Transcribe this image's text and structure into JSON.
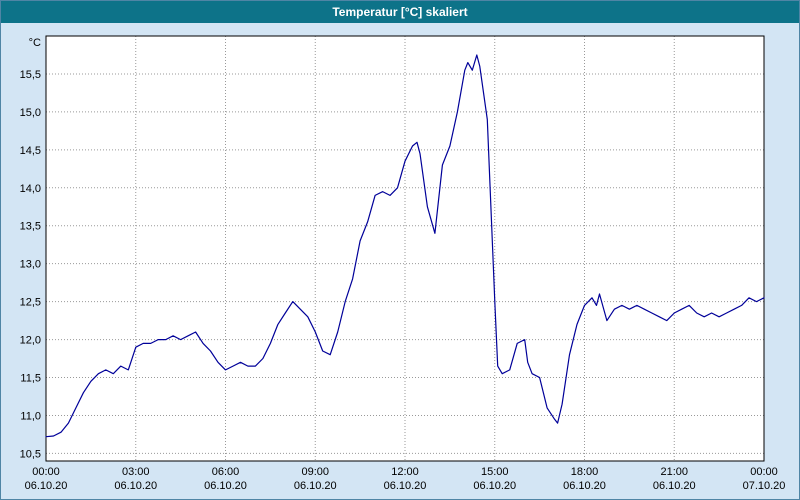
{
  "window": {
    "title": "Temperatur [°C] skaliert"
  },
  "colors": {
    "titlebar": "#0d7389",
    "window_background": "#d3e5f4",
    "plot_background": "#ffffff",
    "plot_border": "#000000",
    "grid": "#999999",
    "line": "#000099",
    "text": "#000000"
  },
  "chart_data": {
    "type": "line",
    "title": "Temperatur [°C] skaliert",
    "ylabel": "°C",
    "xlabel": "",
    "grid": true,
    "legend": false,
    "ylim": [
      10.4,
      16.0
    ],
    "x_range_hours": [
      0,
      24
    ],
    "y_ticks": [
      {
        "value": 10.5,
        "label": "10,5"
      },
      {
        "value": 11.0,
        "label": "11,0"
      },
      {
        "value": 11.5,
        "label": "11,5"
      },
      {
        "value": 12.0,
        "label": "12,0"
      },
      {
        "value": 12.5,
        "label": "12,5"
      },
      {
        "value": 13.0,
        "label": "13,0"
      },
      {
        "value": 13.5,
        "label": "13,5"
      },
      {
        "value": 14.0,
        "label": "14,0"
      },
      {
        "value": 14.5,
        "label": "14,5"
      },
      {
        "value": 15.0,
        "label": "15,0"
      },
      {
        "value": 15.5,
        "label": "15,5"
      }
    ],
    "x_ticks": [
      {
        "hour": 0,
        "time": "00:00",
        "date": "06.10.20"
      },
      {
        "hour": 3,
        "time": "03:00",
        "date": "06.10.20"
      },
      {
        "hour": 6,
        "time": "06:00",
        "date": "06.10.20"
      },
      {
        "hour": 9,
        "time": "09:00",
        "date": "06.10.20"
      },
      {
        "hour": 12,
        "time": "12:00",
        "date": "06.10.20"
      },
      {
        "hour": 15,
        "time": "15:00",
        "date": "06.10.20"
      },
      {
        "hour": 18,
        "time": "18:00",
        "date": "06.10.20"
      },
      {
        "hour": 21,
        "time": "21:00",
        "date": "06.10.20"
      },
      {
        "hour": 24,
        "time": "00:00",
        "date": "07.10.20"
      }
    ],
    "series": [
      {
        "name": "Temperatur",
        "x_hours": [
          0,
          0.25,
          0.5,
          0.75,
          1,
          1.25,
          1.5,
          1.75,
          2,
          2.25,
          2.5,
          2.75,
          3,
          3.25,
          3.5,
          3.75,
          4,
          4.25,
          4.5,
          4.75,
          5,
          5.25,
          5.5,
          5.75,
          6,
          6.25,
          6.5,
          6.75,
          7,
          7.25,
          7.5,
          7.75,
          8,
          8.25,
          8.5,
          8.75,
          9,
          9.25,
          9.5,
          9.75,
          10,
          10.25,
          10.5,
          10.75,
          11,
          11.25,
          11.5,
          11.75,
          12,
          12.25,
          12.4,
          12.5,
          12.75,
          13,
          13.25,
          13.5,
          13.75,
          14,
          14.1,
          14.25,
          14.4,
          14.5,
          14.75,
          15,
          15.1,
          15.25,
          15.5,
          15.75,
          16,
          16.1,
          16.25,
          16.5,
          16.75,
          17,
          17.1,
          17.25,
          17.5,
          17.75,
          18,
          18.25,
          18.4,
          18.5,
          18.75,
          19,
          19.25,
          19.5,
          19.75,
          20,
          20.25,
          20.5,
          20.75,
          21,
          21.25,
          21.5,
          21.75,
          22,
          22.25,
          22.5,
          22.75,
          23,
          23.25,
          23.5,
          23.75,
          24
        ],
        "values": [
          10.72,
          10.73,
          10.78,
          10.9,
          11.1,
          11.3,
          11.45,
          11.55,
          11.6,
          11.55,
          11.65,
          11.6,
          11.9,
          11.95,
          11.95,
          12.0,
          12.0,
          12.05,
          12.0,
          12.05,
          12.1,
          11.95,
          11.85,
          11.7,
          11.6,
          11.65,
          11.7,
          11.65,
          11.65,
          11.75,
          11.95,
          12.2,
          12.35,
          12.5,
          12.4,
          12.3,
          12.1,
          11.85,
          11.8,
          12.1,
          12.5,
          12.8,
          13.3,
          13.55,
          13.9,
          13.95,
          13.9,
          14.0,
          14.35,
          14.55,
          14.6,
          14.45,
          13.75,
          13.4,
          14.3,
          14.55,
          15.0,
          15.55,
          15.65,
          15.55,
          15.75,
          15.6,
          14.9,
          12.5,
          11.65,
          11.55,
          11.6,
          11.95,
          12.0,
          11.7,
          11.55,
          11.5,
          11.1,
          10.95,
          10.9,
          11.15,
          11.8,
          12.2,
          12.45,
          12.55,
          12.45,
          12.6,
          12.25,
          12.4,
          12.45,
          12.4,
          12.45,
          12.4,
          12.35,
          12.3,
          12.25,
          12.35,
          12.4,
          12.45,
          12.35,
          12.3,
          12.35,
          12.3,
          12.35,
          12.4,
          12.45,
          12.55,
          12.5,
          12.55
        ]
      }
    ]
  }
}
